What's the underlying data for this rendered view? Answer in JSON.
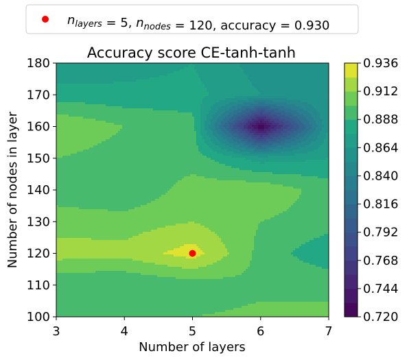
{
  "chart_data": {
    "type": "heatmap",
    "title": "Accuracy score CE-tanh-tanh",
    "xlabel": "Number of layers",
    "ylabel": "Number of nodes in layer",
    "x": [
      3,
      4,
      5,
      6,
      7
    ],
    "y": [
      100,
      110,
      120,
      130,
      140,
      150,
      160,
      170,
      180
    ],
    "xlim": [
      3,
      7
    ],
    "ylim": [
      100,
      180
    ],
    "x_ticks": [
      "3",
      "4",
      "5",
      "6",
      "7"
    ],
    "y_ticks": [
      "100",
      "110",
      "120",
      "130",
      "140",
      "150",
      "160",
      "170",
      "180"
    ],
    "z": [
      [
        0.894,
        0.894,
        0.9,
        0.902,
        0.902
      ],
      [
        0.888,
        0.888,
        0.894,
        0.898,
        0.898
      ],
      [
        0.918,
        0.916,
        0.93,
        0.896,
        0.878
      ],
      [
        0.906,
        0.906,
        0.912,
        0.9,
        0.894
      ],
      [
        0.894,
        0.888,
        0.906,
        0.91,
        0.894
      ],
      [
        0.9,
        0.894,
        0.894,
        0.87,
        0.876
      ],
      [
        0.912,
        0.9,
        0.894,
        0.72,
        0.864
      ],
      [
        0.882,
        0.88,
        0.88,
        0.864,
        0.864
      ],
      [
        0.864,
        0.87,
        0.876,
        0.858,
        0.858
      ]
    ],
    "colorbar": {
      "min": 0.72,
      "max": 0.936,
      "tick_labels": [
        "0.720",
        "0.744",
        "0.768",
        "0.792",
        "0.816",
        "0.840",
        "0.864",
        "0.888",
        "0.912",
        "0.936"
      ]
    },
    "marker": {
      "x": 5,
      "y": 120,
      "color": "#ff0000"
    },
    "legend": {
      "position": "top",
      "parts": [
        {
          "t": "n",
          "italic": true
        },
        {
          "t": "layers",
          "italic": true,
          "sub": true
        },
        {
          "t": " =  5, "
        },
        {
          "t": "n",
          "italic": true
        },
        {
          "t": "nodes",
          "italic": true,
          "sub": true
        },
        {
          "t": " =  120, accuracy = 0.930"
        }
      ]
    },
    "grid": false
  }
}
